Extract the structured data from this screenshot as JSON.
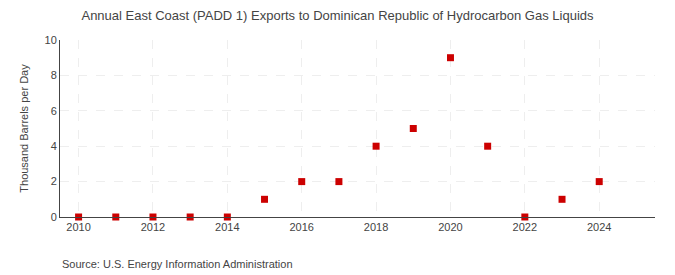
{
  "chart_data": {
    "type": "scatter",
    "title": "Annual East Coast (PADD 1) Exports to Dominican Republic of Hydrocarbon Gas Liquids",
    "ylabel": "Thousand Barrels per Day",
    "annotations": [
      "Source: U.S. Energy Information Administration"
    ],
    "x": [
      2010,
      2011,
      2012,
      2013,
      2014,
      2015,
      2016,
      2017,
      2018,
      2019,
      2020,
      2021,
      2022,
      2023,
      2024
    ],
    "values": [
      0,
      0,
      0,
      0,
      0,
      1,
      2,
      2,
      4,
      5,
      9,
      4,
      0,
      1,
      2
    ],
    "color": "#cc0000",
    "marker": "square",
    "xlim": [
      2009.5,
      2025.5
    ],
    "xticks": [
      2010,
      2012,
      2014,
      2016,
      2018,
      2020,
      2022,
      2024
    ],
    "ylim": [
      0,
      10
    ],
    "yticks": [
      0,
      2,
      4,
      6,
      8,
      10
    ],
    "grid": true
  }
}
